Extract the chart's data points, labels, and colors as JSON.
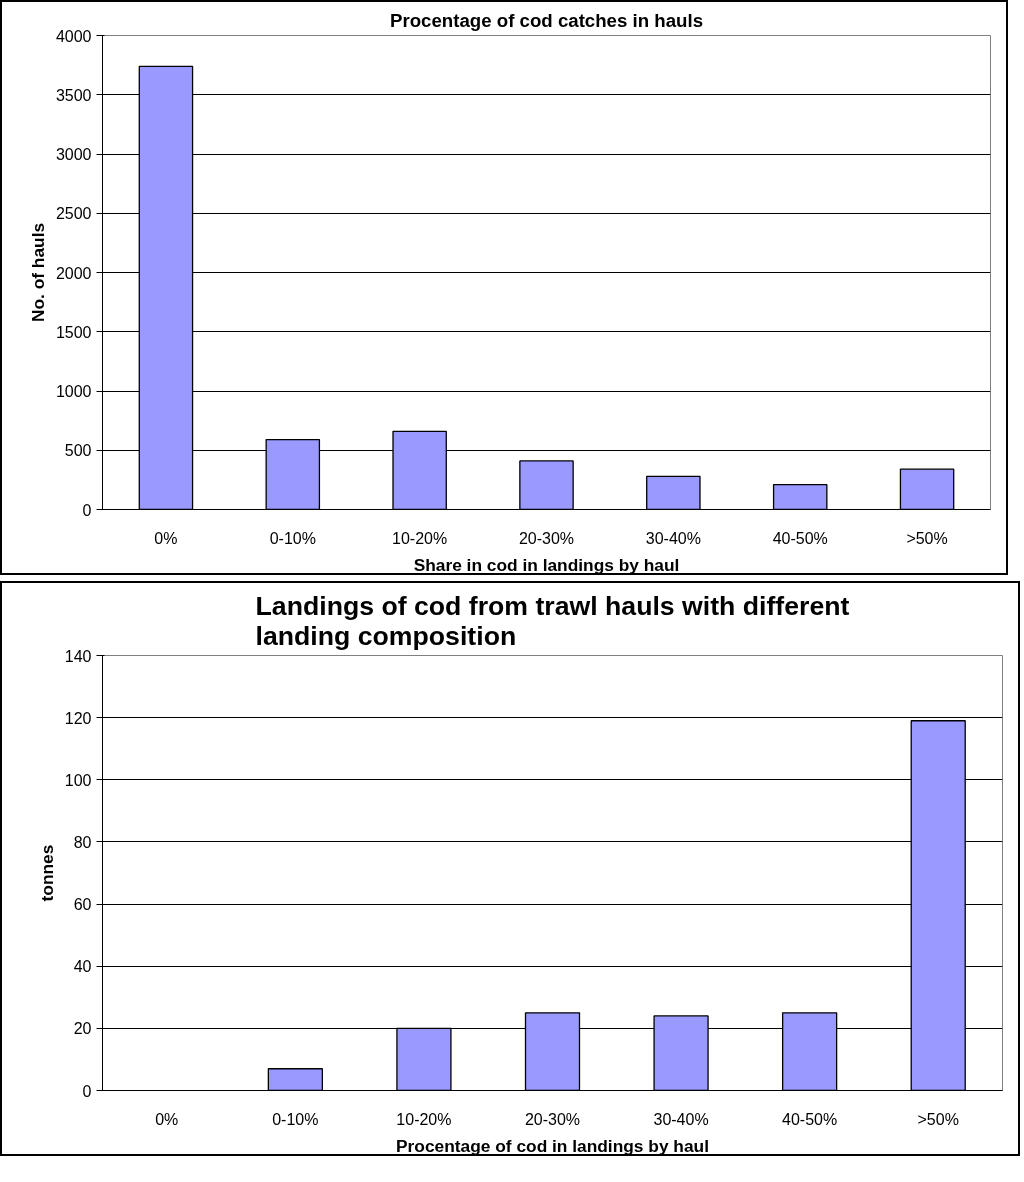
{
  "chart_data": [
    {
      "type": "bar",
      "title": "Procentage of cod catches in hauls",
      "xlabel": "Share in cod in landings by haul",
      "ylabel": "No. of hauls",
      "categories": [
        "0%",
        "0-10%",
        "10-20%",
        "20-30%",
        "30-40%",
        "40-50%",
        ">50%"
      ],
      "values": [
        3740,
        590,
        660,
        410,
        280,
        210,
        340
      ],
      "color": "#9999ff",
      "ylim": [
        0,
        4000
      ],
      "yticks": [
        0,
        500,
        1000,
        1500,
        2000,
        2500,
        3000,
        3500,
        4000
      ],
      "grid": "y"
    },
    {
      "type": "bar",
      "title": "Landings of cod from trawl hauls with different landing composition",
      "xlabel": "Procentage of cod in landings by haul",
      "ylabel": "tonnes",
      "categories": [
        "0%",
        "0-10%",
        "10-20%",
        "20-30%",
        "30-40%",
        "40-50%",
        ">50%"
      ],
      "values": [
        0,
        7,
        20,
        25,
        24,
        25,
        119
      ],
      "color": "#9999ff",
      "ylim": [
        0,
        140
      ],
      "yticks": [
        0,
        20,
        40,
        60,
        80,
        100,
        120,
        140
      ],
      "grid": "y"
    }
  ]
}
